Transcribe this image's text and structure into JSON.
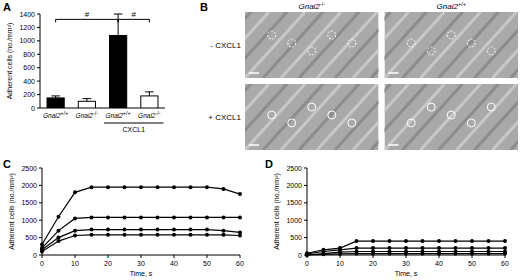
{
  "chart_data": [
    {
      "type": "bar",
      "panel": "A",
      "y_label": "Adherent cells (no./mm²)",
      "categories": [
        "Gnai2+/+",
        "Gnai2-/-",
        "Gnai2+/+",
        "Gnai2-/-"
      ],
      "values": [
        150,
        100,
        1080,
        180
      ],
      "errors": [
        30,
        40,
        320,
        60
      ],
      "colors": [
        "#000000",
        "#ffffff",
        "#000000",
        "#ffffff"
      ],
      "group_labels": [
        {
          "text": "CXCL1",
          "from": 2,
          "to": 3
        }
      ],
      "annotations": [
        {
          "text": "#",
          "from": 0,
          "to": 2,
          "y": 1320
        },
        {
          "text": "#",
          "from": 2,
          "to": 3,
          "y": 1320
        }
      ],
      "ylim": [
        0,
        1400
      ],
      "yticks": [
        0,
        200,
        400,
        600,
        800,
        1000,
        1200,
        1400
      ],
      "grid": false
    },
    {
      "type": "image",
      "panel": "B",
      "columns": [
        "Gnai2-/-",
        "Gnai2+/+"
      ],
      "rows": [
        "- CXCL1",
        "+ CXCL1"
      ]
    },
    {
      "type": "line",
      "panel": "C",
      "x_label": "Time, s",
      "y_label": "Adherent cells (no./mm²)",
      "x": [
        0,
        5,
        10,
        15,
        20,
        25,
        30,
        35,
        40,
        45,
        50,
        55,
        60
      ],
      "series": [
        {
          "color": "#000000",
          "marker": "circle",
          "line_style": "solid",
          "values": [
            300,
            1100,
            1800,
            1950,
            1950,
            1950,
            1950,
            1950,
            1950,
            1950,
            1950,
            1900,
            1750
          ]
        },
        {
          "color": "#000000",
          "marker": "circle",
          "line_style": "solid",
          "values": [
            200,
            700,
            1050,
            1080,
            1080,
            1080,
            1080,
            1080,
            1080,
            1080,
            1080,
            1080,
            1080
          ]
        },
        {
          "color": "#000000",
          "marker": "circle",
          "line_style": "solid",
          "values": [
            150,
            500,
            700,
            730,
            730,
            730,
            730,
            730,
            730,
            730,
            730,
            700,
            650
          ]
        },
        {
          "color": "#000000",
          "marker": "circle",
          "line_style": "solid",
          "values": [
            100,
            400,
            560,
            580,
            580,
            580,
            580,
            580,
            580,
            580,
            580,
            580,
            560
          ]
        }
      ],
      "xlim": [
        0,
        60
      ],
      "xticks": [
        0,
        10,
        20,
        30,
        40,
        50,
        60
      ],
      "ylim": [
        0,
        2500
      ],
      "yticks": [
        0,
        500,
        1000,
        1500,
        2000,
        2500
      ],
      "grid": false
    },
    {
      "type": "line",
      "panel": "D",
      "x_label": "Time, s",
      "y_label": "Adherent cells (no./mm²)",
      "x": [
        0,
        5,
        10,
        15,
        20,
        25,
        30,
        35,
        40,
        45,
        50,
        55,
        60
      ],
      "series": [
        {
          "color": "#000000",
          "marker": "circle",
          "line_style": "solid",
          "values": [
            50,
            150,
            200,
            400,
            400,
            400,
            400,
            400,
            400,
            400,
            400,
            400,
            400
          ]
        },
        {
          "color": "#000000",
          "marker": "circle",
          "line_style": "solid",
          "values": [
            30,
            100,
            150,
            200,
            200,
            200,
            200,
            200,
            200,
            200,
            200,
            200,
            200
          ]
        },
        {
          "color": "#000000",
          "marker": "circle",
          "line_style": "solid",
          "values": [
            0,
            40,
            80,
            100,
            100,
            100,
            100,
            100,
            100,
            100,
            100,
            100,
            100
          ]
        },
        {
          "color": "#000000",
          "marker": "circle",
          "line_style": "solid",
          "values": [
            0,
            20,
            30,
            40,
            40,
            40,
            40,
            40,
            40,
            40,
            40,
            40,
            40
          ]
        }
      ],
      "xlim": [
        0,
        60
      ],
      "xticks": [
        0,
        10,
        20,
        30,
        40,
        50,
        60
      ],
      "ylim": [
        0,
        2500
      ],
      "yticks": [
        0,
        500,
        1000,
        1500,
        2000,
        2500
      ],
      "grid": false
    }
  ]
}
